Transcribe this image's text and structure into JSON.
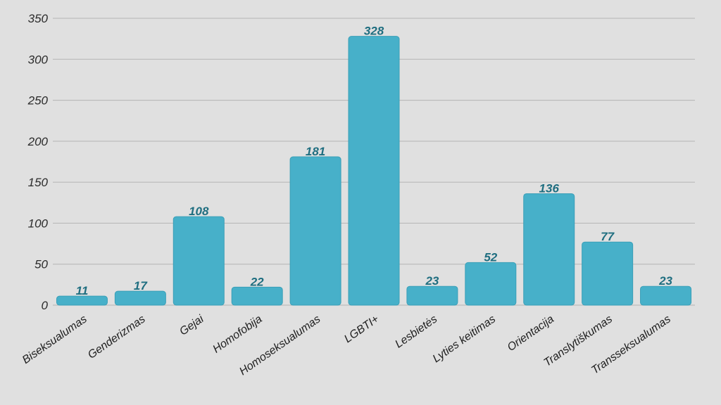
{
  "chart_data": {
    "type": "bar",
    "title": "",
    "xlabel": "",
    "ylabel": "",
    "categories": [
      "Biseksualumas",
      "Genderizmas",
      "Gejai",
      "Homofobija",
      "Homoseksualumas",
      "LGBTI+",
      "Lesbietės",
      "Lyties keitimas",
      "Orientacija",
      "Translytiškumas",
      "Transseksualumas"
    ],
    "values": [
      11,
      17,
      108,
      22,
      181,
      328,
      23,
      52,
      136,
      77,
      23
    ],
    "ylim": [
      0,
      350
    ],
    "yticks": [
      0,
      50,
      100,
      150,
      200,
      250,
      300,
      350
    ],
    "grid": true,
    "legend": "none",
    "colors": {
      "bar": "#47b0c9",
      "bar_stroke": "#3a9fb8",
      "data_label": "#1f6e80",
      "background": "#e0e0e0",
      "grid": "#b4b4b4"
    }
  }
}
